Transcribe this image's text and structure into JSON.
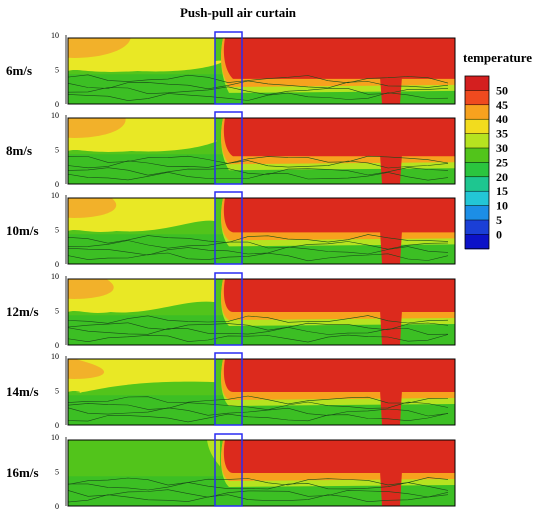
{
  "title": "Push-pull air curtain",
  "chart_data": {
    "type": "heatmap",
    "title": "Push-pull air curtain",
    "panels": [
      {
        "label": "6m/s",
        "warm_extent": 0.36,
        "plume_bottom": 0.62
      },
      {
        "label": "8m/s",
        "warm_extent": 0.33,
        "plume_bottom": 0.58
      },
      {
        "label": "10m/s",
        "warm_extent": 0.25,
        "plume_bottom": 0.52
      },
      {
        "label": "12m/s",
        "warm_extent": 0.22,
        "plume_bottom": 0.5
      },
      {
        "label": "14m/s",
        "warm_extent": 0.04,
        "plume_bottom": 0.5
      },
      {
        "label": "16m/s",
        "warm_extent": 0.0,
        "plume_bottom": 0.5
      }
    ],
    "y_ticks": [
      "0",
      "5",
      "10"
    ],
    "ylim": [
      0,
      10
    ],
    "colorbar": {
      "title": "temperature",
      "levels": [
        50,
        45,
        40,
        35,
        30,
        25,
        20,
        15,
        10,
        5,
        0
      ],
      "colors": [
        "#d41f1f",
        "#ef4a1f",
        "#f7a21e",
        "#f2dc1e",
        "#b6e320",
        "#52c41b",
        "#2bc53e",
        "#1ec690",
        "#23c6d6",
        "#1c8ee6",
        "#1b3fd6",
        "#0c12c8"
      ]
    },
    "annotation": "blue rectangle marks air curtain location"
  }
}
